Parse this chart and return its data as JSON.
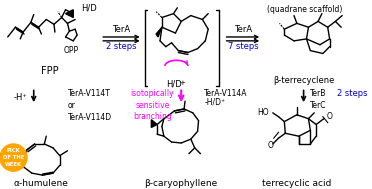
{
  "background_color": "#ffffff",
  "quadrane_text": "(quadrane scaffold)",
  "fpp_label": "FPP",
  "fpp_opp": "OPP",
  "fpp_hd": "H/D",
  "tera_label1": "TerA",
  "steps2_label": "2 steps",
  "steps7_label": "7 steps",
  "tera_label2": "TerA",
  "hd_label": "H/D",
  "beta_terrec_label": "β-terrecyclene",
  "terb_terc": "TerB\nTerC",
  "steps2_label2": "2 steps",
  "terrecyclic_label": "terrecyclic acid",
  "minus_h": "-H⁺",
  "tera_v114t": "TerA-V114T\nor\nTerA-V114D",
  "isotopic": "isotopically\nsensitive\nbranching",
  "tera_v114a": "TerA-V114A\n-H/D⁺",
  "alpha_hum": "α-humulene",
  "beta_cary": "β-caryophyllene",
  "blue_color": "#0000cc",
  "magenta_color": "#ff00ff",
  "orange_color": "#FFA500",
  "black_color": "#000000"
}
